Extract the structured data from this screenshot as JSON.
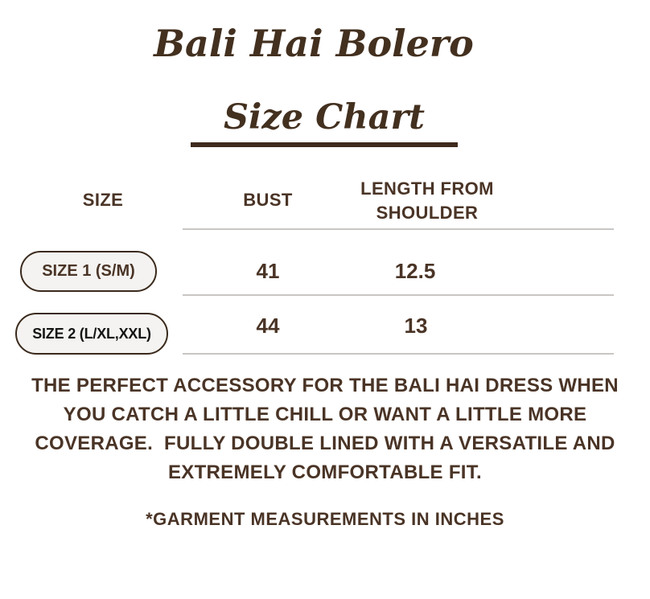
{
  "colors": {
    "brown_text": "#4a3426",
    "rule_brown": "#3e2b1d",
    "pill_background": "#f4f3f1",
    "pill_border": "#3a2a1c",
    "row2_text": "#151515",
    "divider_gray": "#c9c6c3"
  },
  "header": {
    "title": "Bali Hai Bolero",
    "subtitle": "Size Chart"
  },
  "table": {
    "columns": [
      {
        "label": "SIZE"
      },
      {
        "label": "BUST"
      },
      {
        "label": "LENGTH FROM SHOULDER"
      }
    ],
    "rows": [
      {
        "size_label": "SIZE 1 (S/M)",
        "bust": "41",
        "length_from_shoulder": "12.5"
      },
      {
        "size_label": "SIZE 2 (L/XL,XXL)",
        "bust": "44",
        "length_from_shoulder": "13"
      }
    ]
  },
  "description": {
    "lines": [
      "THE PERFECT ACCESSORY FOR THE BALI HAI DRESS WHEN",
      "YOU CATCH A LITTLE CHILL OR WANT A LITTLE MORE",
      "COVERAGE.  FULLY DOUBLE LINED WITH A VERSATILE AND",
      "EXTREMELY COMFORTABLE FIT."
    ]
  },
  "footnote": "*GARMENT MEASUREMENTS IN INCHES"
}
